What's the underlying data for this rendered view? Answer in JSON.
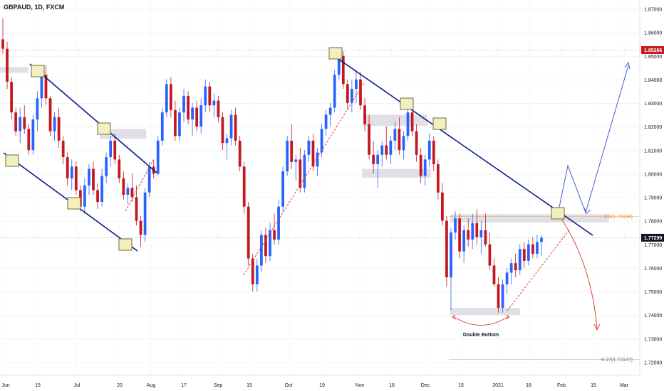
{
  "header": {
    "title": "GBPAUD, 1D, FXCM"
  },
  "colors": {
    "up": "#2962ff",
    "down": "#c2181e",
    "trendline": "#0d1a8c",
    "red_path": "#e0443a",
    "blue_path": "#4a5bd6",
    "fib": "#f08a24",
    "price_current": "#131722",
    "price_high": "#c2181e",
    "zone": "#d1d4dc",
    "box_fill": "#f3f0c0",
    "box_stroke": "#6b6b3a"
  },
  "chart_data": {
    "type": "candlestick",
    "title": "GBPAUD, 1D, FXCM",
    "ylim": [
      1.716,
      1.872
    ],
    "y_ticks": [
      "1.87000",
      "1.86000",
      "1.85000",
      "1.84000",
      "1.83000",
      "1.82000",
      "1.81000",
      "1.80000",
      "1.79000",
      "1.78000",
      "1.77000",
      "1.76000",
      "1.75000",
      "1.74000",
      "1.73000",
      "1.72000"
    ],
    "x_ticks": [
      "Jun",
      "15",
      "Jul",
      "20",
      "Aug",
      "17",
      "Sep",
      "15",
      "Oct",
      "19",
      "Nov",
      "16",
      "Dec",
      "15",
      "2021",
      "18",
      "Feb",
      "15",
      "Mar"
    ],
    "price_labels": [
      {
        "text": "1.85266",
        "value": 1.85266,
        "kind": "high"
      },
      {
        "text": "1.77299",
        "value": 1.77299,
        "kind": "current"
      }
    ],
    "fib_levels": [
      {
        "text": "0.5(1.78198)",
        "value": 1.78198
      },
      {
        "text": "-0.27(1.72137)",
        "value": 1.72137
      }
    ],
    "annotations": [
      {
        "text": "Double Bottom"
      }
    ],
    "candles": [
      [
        1.8572,
        1.8662,
        1.8512,
        1.8532
      ],
      [
        1.8532,
        1.8562,
        1.8362,
        1.8392
      ],
      [
        1.8392,
        1.8412,
        1.8232,
        1.8262
      ],
      [
        1.8262,
        1.8282,
        1.8162,
        1.8182
      ],
      [
        1.8182,
        1.8282,
        1.8132,
        1.8242
      ],
      [
        1.8242,
        1.8292,
        1.8172,
        1.8192
      ],
      [
        1.8192,
        1.8212,
        1.8082,
        1.8102
      ],
      [
        1.8102,
        1.8252,
        1.8082,
        1.8232
      ],
      [
        1.8232,
        1.8352,
        1.8182,
        1.8322
      ],
      [
        1.8322,
        1.8452,
        1.8282,
        1.8422
      ],
      [
        1.8422,
        1.8462,
        1.8292,
        1.8322
      ],
      [
        1.8322,
        1.8332,
        1.8162,
        1.8182
      ],
      [
        1.8182,
        1.8262,
        1.8142,
        1.8242
      ],
      [
        1.8242,
        1.8282,
        1.8112,
        1.8142
      ],
      [
        1.8142,
        1.8162,
        1.8042,
        1.8072
      ],
      [
        1.8072,
        1.8092,
        1.7952,
        1.7982
      ],
      [
        1.7982,
        1.8062,
        1.7932,
        1.8032
      ],
      [
        1.8032,
        1.8052,
        1.7912,
        1.7932
      ],
      [
        1.7932,
        1.7952,
        1.7842,
        1.7862
      ],
      [
        1.7862,
        1.7982,
        1.7832,
        1.7952
      ],
      [
        1.7952,
        1.8042,
        1.7912,
        1.8022
      ],
      [
        1.8022,
        1.8052,
        1.7912,
        1.7932
      ],
      [
        1.7932,
        1.7962,
        1.7852,
        1.7882
      ],
      [
        1.7882,
        1.8022,
        1.7862,
        1.7992
      ],
      [
        1.7992,
        1.8092,
        1.7962,
        1.8072
      ],
      [
        1.8072,
        1.8162,
        1.8032,
        1.8142
      ],
      [
        1.8142,
        1.8172,
        1.8042,
        1.8062
      ],
      [
        1.8062,
        1.8082,
        1.7962,
        1.7982
      ],
      [
        1.7982,
        1.8012,
        1.7892,
        1.7912
      ],
      [
        1.7912,
        1.7962,
        1.7872,
        1.7942
      ],
      [
        1.7942,
        1.8002,
        1.7882,
        1.7902
      ],
      [
        1.7902,
        1.7952,
        1.7782,
        1.7802
      ],
      [
        1.7802,
        1.7822,
        1.7692,
        1.7742
      ],
      [
        1.7742,
        1.7942,
        1.7712,
        1.7922
      ],
      [
        1.7922,
        1.8052,
        1.7902,
        1.8032
      ],
      [
        1.8032,
        1.8062,
        1.7982,
        1.8002
      ],
      [
        1.8002,
        1.8162,
        1.7992,
        1.8142
      ],
      [
        1.8142,
        1.8282,
        1.8122,
        1.8262
      ],
      [
        1.8262,
        1.8402,
        1.8242,
        1.8382
      ],
      [
        1.8382,
        1.8412,
        1.8242,
        1.8272
      ],
      [
        1.8272,
        1.8312,
        1.8142,
        1.8162
      ],
      [
        1.8162,
        1.8282,
        1.8142,
        1.8262
      ],
      [
        1.8262,
        1.8362,
        1.8222,
        1.8332
      ],
      [
        1.8332,
        1.8352,
        1.8212,
        1.8232
      ],
      [
        1.8232,
        1.8302,
        1.8162,
        1.8282
      ],
      [
        1.8282,
        1.8312,
        1.8182,
        1.8202
      ],
      [
        1.8202,
        1.8322,
        1.8172,
        1.8292
      ],
      [
        1.8292,
        1.8402,
        1.8262,
        1.8372
      ],
      [
        1.8372,
        1.8392,
        1.8262,
        1.8292
      ],
      [
        1.8292,
        1.8342,
        1.8242,
        1.8312
      ],
      [
        1.8312,
        1.8332,
        1.8222,
        1.8242
      ],
      [
        1.8242,
        1.8262,
        1.8102,
        1.8132
      ],
      [
        1.8132,
        1.8172,
        1.8062,
        1.8152
      ],
      [
        1.8152,
        1.8272,
        1.8122,
        1.8252
      ],
      [
        1.8252,
        1.8282,
        1.8122,
        1.8142
      ],
      [
        1.8142,
        1.8162,
        1.8012,
        1.8032
      ],
      [
        1.8032,
        1.8052,
        1.7832,
        1.7862
      ],
      [
        1.7862,
        1.7882,
        1.7612,
        1.7642
      ],
      [
        1.7642,
        1.7662,
        1.7502,
        1.7532
      ],
      [
        1.7532,
        1.7642,
        1.7502,
        1.7612
      ],
      [
        1.7612,
        1.7762,
        1.7582,
        1.7742
      ],
      [
        1.7742,
        1.7772,
        1.7622,
        1.7652
      ],
      [
        1.7652,
        1.7792,
        1.7632,
        1.7762
      ],
      [
        1.7762,
        1.7832,
        1.7702,
        1.7722
      ],
      [
        1.7722,
        1.7892,
        1.7702,
        1.7862
      ],
      [
        1.7862,
        1.8032,
        1.7842,
        1.8012
      ],
      [
        1.8012,
        1.8162,
        1.7992,
        1.8142
      ],
      [
        1.8142,
        1.8212,
        1.8022,
        1.8052
      ],
      [
        1.8052,
        1.8082,
        1.7972,
        1.8062
      ],
      [
        1.8062,
        1.8112,
        1.7922,
        1.7942
      ],
      [
        1.7942,
        1.8102,
        1.7922,
        1.8082
      ],
      [
        1.8082,
        1.8162,
        1.8052,
        1.8142
      ],
      [
        1.8142,
        1.8172,
        1.8012,
        1.8032
      ],
      [
        1.8032,
        1.8112,
        1.7992,
        1.8092
      ],
      [
        1.8092,
        1.8212,
        1.8072,
        1.8192
      ],
      [
        1.8192,
        1.8272,
        1.8162,
        1.8252
      ],
      [
        1.8252,
        1.8302,
        1.8202,
        1.8282
      ],
      [
        1.8282,
        1.8442,
        1.8262,
        1.8422
      ],
      [
        1.8422,
        1.8532,
        1.8402,
        1.8502
      ],
      [
        1.8502,
        1.8522,
        1.8362,
        1.8382
      ],
      [
        1.8382,
        1.8402,
        1.8272,
        1.8302
      ],
      [
        1.8302,
        1.8402,
        1.8262,
        1.8362
      ],
      [
        1.8362,
        1.8442,
        1.8302,
        1.8402
      ],
      [
        1.8402,
        1.8432,
        1.8272,
        1.8292
      ],
      [
        1.8292,
        1.8322,
        1.8182,
        1.8212
      ],
      [
        1.8212,
        1.8252,
        1.8062,
        1.8082
      ],
      [
        1.8082,
        1.8142,
        1.8002,
        1.8042
      ],
      [
        1.8042,
        1.8102,
        1.7942,
        1.8082
      ],
      [
        1.8082,
        1.8142,
        1.8032,
        1.8122
      ],
      [
        1.8122,
        1.8202,
        1.8062,
        1.8082
      ],
      [
        1.8082,
        1.8162,
        1.8042,
        1.8142
      ],
      [
        1.8142,
        1.8222,
        1.8102,
        1.8192
      ],
      [
        1.8192,
        1.8242,
        1.8082,
        1.8102
      ],
      [
        1.8102,
        1.8182,
        1.8062,
        1.8162
      ],
      [
        1.8162,
        1.8292,
        1.8142,
        1.8262
      ],
      [
        1.8262,
        1.8302,
        1.8162,
        1.8182
      ],
      [
        1.8182,
        1.8212,
        1.8052,
        1.8082
      ],
      [
        1.8082,
        1.8112,
        1.7962,
        1.7992
      ],
      [
        1.7992,
        1.8082,
        1.7952,
        1.8062
      ],
      [
        1.8062,
        1.8172,
        1.8032,
        1.8142
      ],
      [
        1.8142,
        1.8162,
        1.8012,
        1.8042
      ],
      [
        1.8042,
        1.8062,
        1.7892,
        1.7922
      ],
      [
        1.7922,
        1.7962,
        1.7782,
        1.7802
      ],
      [
        1.7802,
        1.7822,
        1.7522,
        1.7562
      ],
      [
        1.7562,
        1.7772,
        1.7422,
        1.7752
      ],
      [
        1.7752,
        1.7842,
        1.7722,
        1.7812
      ],
      [
        1.7812,
        1.7832,
        1.7642,
        1.7672
      ],
      [
        1.7672,
        1.7782,
        1.7622,
        1.7762
      ],
      [
        1.7762,
        1.7812,
        1.7692,
        1.7722
      ],
      [
        1.7722,
        1.7832,
        1.7682,
        1.7792
      ],
      [
        1.7792,
        1.7852,
        1.7702,
        1.7732
      ],
      [
        1.7732,
        1.7802,
        1.7662,
        1.7762
      ],
      [
        1.7762,
        1.7832,
        1.7692,
        1.7702
      ],
      [
        1.7702,
        1.7752,
        1.7592,
        1.7612
      ],
      [
        1.7612,
        1.7642,
        1.7522,
        1.7532
      ],
      [
        1.7532,
        1.7562,
        1.7412,
        1.7432
      ],
      [
        1.7432,
        1.7552,
        1.7412,
        1.7532
      ],
      [
        1.7532,
        1.7602,
        1.7492,
        1.7582
      ],
      [
        1.7582,
        1.7642,
        1.7532,
        1.7622
      ],
      [
        1.7622,
        1.7662,
        1.7562,
        1.7592
      ],
      [
        1.7592,
        1.7702,
        1.7572,
        1.7682
      ],
      [
        1.7682,
        1.7712,
        1.7602,
        1.7632
      ],
      [
        1.7632,
        1.7722,
        1.7612,
        1.7702
      ],
      [
        1.7702,
        1.7732,
        1.7642,
        1.7662
      ],
      [
        1.7662,
        1.7742,
        1.7642,
        1.7712
      ],
      [
        1.7712,
        1.7742,
        1.7652,
        1.773
      ]
    ]
  }
}
